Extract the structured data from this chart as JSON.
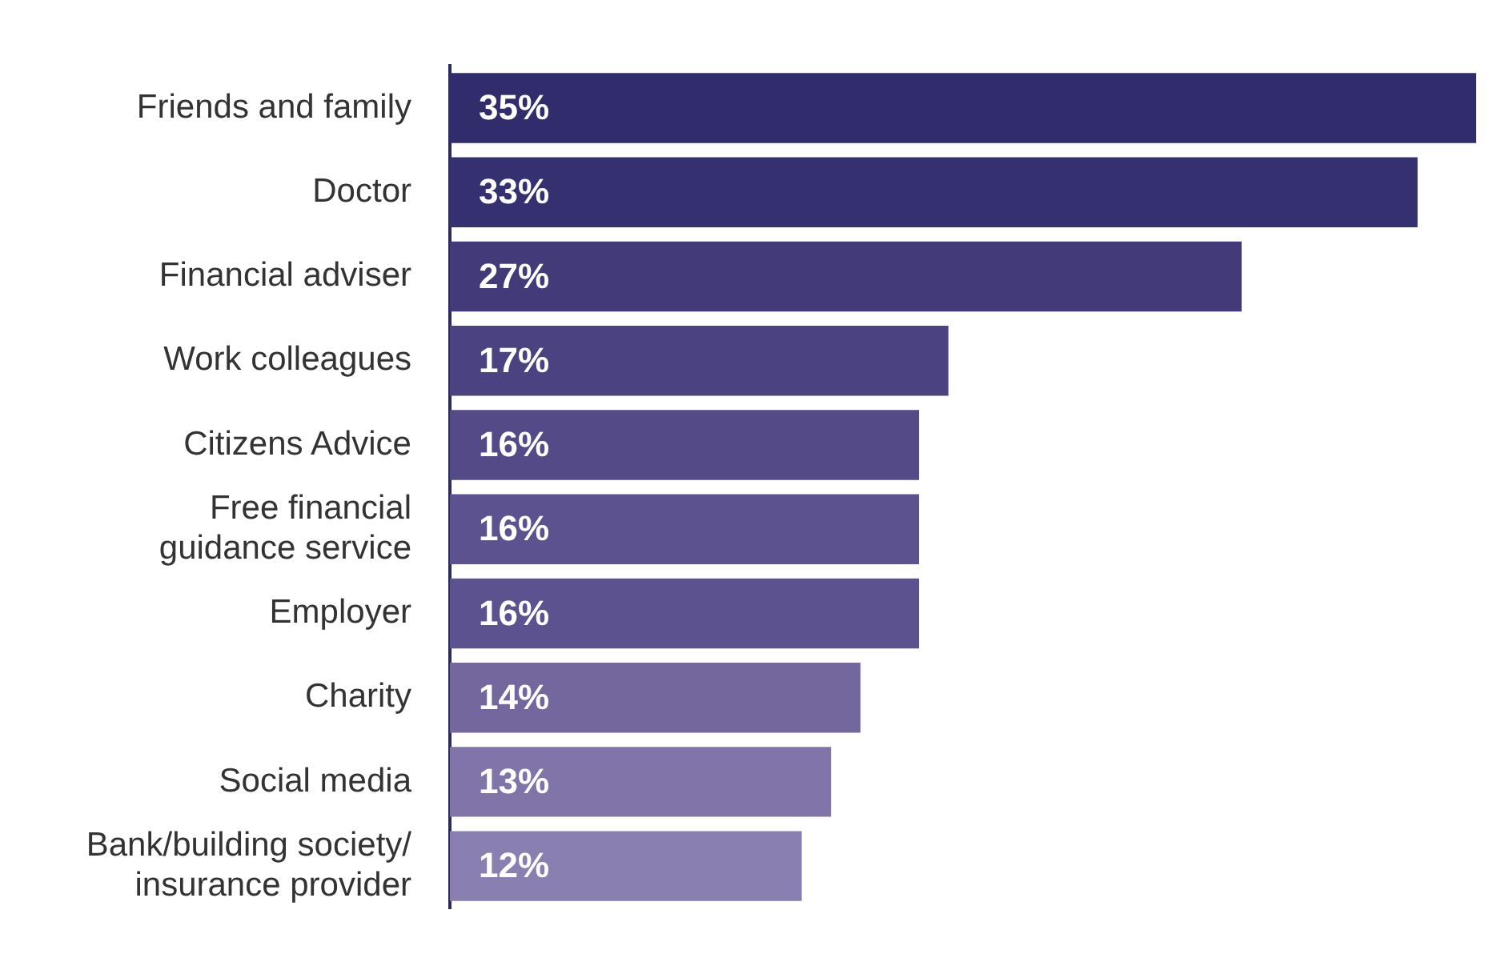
{
  "chart_data": {
    "type": "bar",
    "orientation": "horizontal",
    "categories": [
      "Friends and family",
      "Doctor",
      "Financial adviser",
      "Work colleagues",
      "Citizens Advice",
      "Free financial guidance service",
      "Employer",
      "Charity",
      "Social media",
      "Bank/building society/ insurance provider"
    ],
    "values": [
      35,
      33,
      27,
      17,
      16,
      16,
      16,
      14,
      13,
      12
    ],
    "value_labels": [
      "35%",
      "33%",
      "27%",
      "17%",
      "16%",
      "16%",
      "16%",
      "14%",
      "13%",
      "12%"
    ],
    "colors": [
      "#312c6b",
      "#35306f",
      "#433b79",
      "#4b4281",
      "#544a87",
      "#5c528f",
      "#5d5290",
      "#73679e",
      "#8074a8",
      "#8a7fb1"
    ],
    "xlim": [
      0,
      35
    ],
    "tick_labels": "y",
    "legend": false
  }
}
